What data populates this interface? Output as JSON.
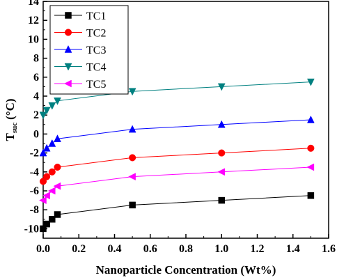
{
  "chart_data": {
    "type": "line",
    "title": "",
    "xlabel": "Nanoparticle Concentration (Wt%)",
    "ylabel_main": "T",
    "ylabel_sub": "suc",
    "ylabel_unit": "(°C)",
    "xlim": [
      0.0,
      1.6
    ],
    "ylim": [
      -11,
      14
    ],
    "xticks": [
      "0.0",
      "0.2",
      "0.4",
      "0.6",
      "0.8",
      "1.0",
      "1.2",
      "1.4",
      "1.6"
    ],
    "yticks": [
      "-10",
      "-8",
      "-6",
      "-4",
      "-2",
      "0",
      "2",
      "4",
      "6",
      "8",
      "10",
      "12",
      "14"
    ],
    "grid": false,
    "legend_position": "top-left",
    "series": [
      {
        "name": "TC1",
        "color": "#000000",
        "marker": "square",
        "x": [
          0,
          0.02,
          0.05,
          0.08,
          0.5,
          1.0,
          1.5
        ],
        "y": [
          -10,
          -9.5,
          -9,
          -8.5,
          -7.5,
          -7,
          -6.5
        ]
      },
      {
        "name": "TC2",
        "color": "#ff0000",
        "marker": "circle",
        "x": [
          0,
          0.02,
          0.05,
          0.08,
          0.5,
          1.0,
          1.5
        ],
        "y": [
          -5,
          -4.5,
          -4,
          -3.5,
          -2.5,
          -2,
          -1.5
        ]
      },
      {
        "name": "TC3",
        "color": "#0000ff",
        "marker": "triangle-up",
        "x": [
          0,
          0.02,
          0.05,
          0.08,
          0.5,
          1.0,
          1.5
        ],
        "y": [
          -2,
          -1.5,
          -1,
          -0.5,
          0.5,
          1,
          1.5
        ]
      },
      {
        "name": "TC4",
        "color": "#008080",
        "marker": "triangle-down",
        "x": [
          0,
          0.02,
          0.05,
          0.08,
          0.5,
          1.0,
          1.5
        ],
        "y": [
          2,
          2.5,
          3,
          3.5,
          4.5,
          5,
          5.5
        ]
      },
      {
        "name": "TC5",
        "color": "#ff00ff",
        "marker": "triangle-left",
        "x": [
          0,
          0.02,
          0.05,
          0.08,
          0.5,
          1.0,
          1.5
        ],
        "y": [
          -7,
          -6.5,
          -6,
          -5.5,
          -4.5,
          -4,
          -3.5
        ]
      }
    ]
  }
}
